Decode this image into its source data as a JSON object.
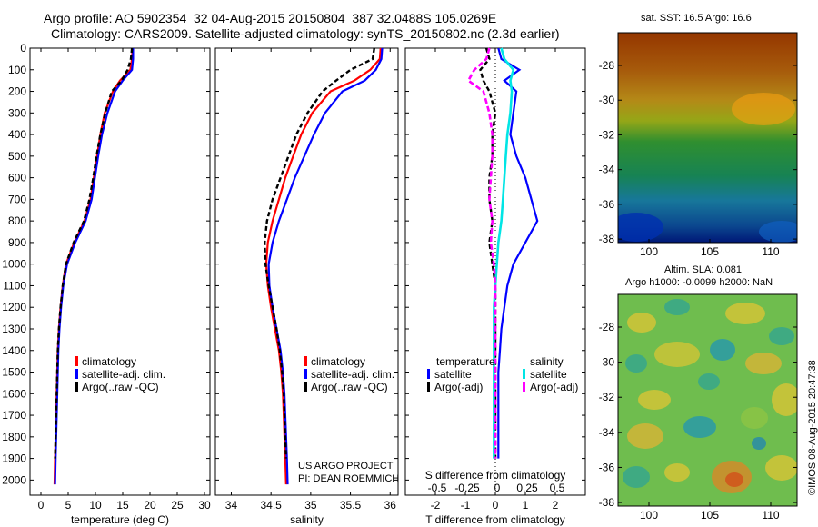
{
  "header": {
    "title_line1": "Argo profile: AO 5902354_32 04-Aug-2015 20150804_387 32.0488S 105.0269E",
    "title_line2": "Climatology: CARS2009. Satellite-adjusted climatology: synTS_20150802.nc (2.3d earlier)"
  },
  "maps": {
    "sst_title": "sat. SST: 16.5 Argo: 16.6",
    "sla_title1": "Altim. SLA: 0.081",
    "sla_title2": "Argo h1000: -0.0099 h2000: NaN",
    "xticks": [
      "100",
      "105",
      "110"
    ],
    "yticks": [
      "-28",
      "-30",
      "-32",
      "-34",
      "-36",
      "-38"
    ]
  },
  "side_label": "©IMOS 08-Aug-2015 20:47:38",
  "project": {
    "line1": "US ARGO PROJECT",
    "line2": "PI: DEAN ROEMMICH"
  },
  "depth_ticks": [
    "0",
    "100",
    "200",
    "300",
    "400",
    "500",
    "600",
    "700",
    "800",
    "900",
    "1000",
    "1100",
    "1200",
    "1300",
    "1400",
    "1500",
    "1600",
    "1700",
    "1800",
    "1900",
    "2000"
  ],
  "legend_profiles": [
    "climatology",
    "satellite-adj. clim.",
    "Argo(..raw -QC)"
  ],
  "legend_diff": {
    "temp_header": "temperature",
    "sal_header": "salinity",
    "satellite": "satellite",
    "argo": "Argo(-adj)"
  },
  "colors": {
    "climatology": "#ff0000",
    "satellite": "#0000ff",
    "argo": "#000000",
    "sal_satellite": "#00e5e5",
    "sal_argo": "#ff00ff"
  },
  "chart_data": [
    {
      "type": "line",
      "xlabel": "temperature (deg C)",
      "ylabel": "",
      "xlim": [
        -2,
        31
      ],
      "ylim": [
        2070,
        0
      ],
      "xticks": [
        "0",
        "5",
        "10",
        "15",
        "20",
        "25",
        "30"
      ],
      "series": [
        {
          "name": "climatology",
          "x": [
            16.8,
            16.7,
            16.4,
            14.5,
            13.2,
            11.7,
            10.9,
            10.3,
            9.7,
            9.1,
            8.0,
            6.1,
            4.6,
            4.0,
            3.6,
            3.3,
            3.1,
            3.0,
            2.9,
            2.8,
            2.7,
            2.6,
            2.5
          ],
          "y": [
            0,
            50,
            100,
            150,
            200,
            300,
            400,
            500,
            600,
            700,
            800,
            900,
            1000,
            1100,
            1200,
            1300,
            1400,
            1500,
            1600,
            1700,
            1800,
            1900,
            2020
          ]
        },
        {
          "name": "satellite-adj. clim.",
          "x": [
            16.9,
            16.9,
            16.7,
            15.0,
            13.6,
            12.2,
            11.2,
            10.5,
            9.9,
            9.3,
            8.2,
            6.3,
            4.8,
            4.1,
            3.7,
            3.4,
            3.2,
            3.1,
            3.0,
            2.9,
            2.8,
            2.7,
            2.6
          ],
          "y": [
            0,
            50,
            100,
            150,
            200,
            300,
            400,
            500,
            600,
            700,
            800,
            900,
            1000,
            1100,
            1200,
            1300,
            1400,
            1500,
            1600,
            1700,
            1800,
            1900,
            2020
          ]
        },
        {
          "name": "Argo(..raw -QC)",
          "x": [
            16.7,
            16.5,
            15.9,
            14.8,
            13.0,
            11.8,
            10.9,
            10.2,
            9.6,
            8.9,
            7.9,
            6.0,
            4.6,
            4.0,
            3.6,
            3.3,
            3.1,
            3.0,
            2.9,
            2.8,
            2.7,
            2.6
          ],
          "y": [
            0,
            50,
            100,
            150,
            200,
            300,
            400,
            500,
            600,
            700,
            800,
            900,
            1000,
            1100,
            1200,
            1300,
            1400,
            1500,
            1600,
            1700,
            1800,
            1900
          ]
        }
      ]
    },
    {
      "type": "line",
      "xlabel": "salinity",
      "ylabel": "",
      "xlim": [
        33.8,
        36.1
      ],
      "ylim": [
        2070,
        0
      ],
      "xticks": [
        "34",
        "34.5",
        "35",
        "35.5",
        "36"
      ],
      "series": [
        {
          "name": "climatology",
          "x": [
            35.88,
            35.87,
            35.75,
            35.55,
            35.25,
            35.02,
            34.88,
            34.78,
            34.68,
            34.6,
            34.52,
            34.46,
            34.44,
            34.46,
            34.5,
            34.55,
            34.6,
            34.63,
            34.65,
            34.66,
            34.67,
            34.68,
            34.69
          ],
          "y": [
            0,
            50,
            100,
            150,
            200,
            300,
            400,
            500,
            600,
            700,
            800,
            900,
            1000,
            1100,
            1200,
            1300,
            1400,
            1500,
            1600,
            1700,
            1800,
            1900,
            2020
          ]
        },
        {
          "name": "satellite-adj. clim.",
          "x": [
            35.9,
            35.89,
            35.82,
            35.68,
            35.4,
            35.18,
            35.04,
            34.92,
            34.8,
            34.7,
            34.6,
            34.52,
            34.47,
            34.48,
            34.52,
            34.57,
            34.62,
            34.65,
            34.67,
            34.68,
            34.69,
            34.7,
            34.71
          ],
          "y": [
            0,
            50,
            100,
            150,
            200,
            300,
            400,
            500,
            600,
            700,
            800,
            900,
            1000,
            1100,
            1200,
            1300,
            1400,
            1500,
            1600,
            1700,
            1800,
            1900,
            2020
          ]
        },
        {
          "name": "Argo(..raw -QC)",
          "x": [
            35.8,
            35.78,
            35.5,
            35.32,
            35.15,
            34.96,
            34.82,
            34.72,
            34.62,
            34.52,
            34.45,
            34.42,
            34.43,
            34.47,
            34.52,
            34.57,
            34.61,
            34.64,
            34.66,
            34.67,
            34.68,
            34.69
          ],
          "y": [
            0,
            50,
            100,
            150,
            200,
            300,
            400,
            500,
            600,
            700,
            800,
            900,
            1000,
            1100,
            1200,
            1300,
            1400,
            1500,
            1600,
            1700,
            1800,
            1900
          ]
        }
      ]
    },
    {
      "type": "line",
      "xlabel": "T difference from climatology",
      "xlabel_top": "S difference from climatology",
      "ylabel": "",
      "xlim": [
        -3,
        3
      ],
      "ylim": [
        2070,
        0
      ],
      "xticks": [
        "-2",
        "-1",
        "0",
        "1",
        "2"
      ],
      "xticks_top": [
        "-0.5",
        "-0.25",
        "0",
        "0.25",
        "0.5"
      ],
      "series": [
        {
          "name": "temperature satellite",
          "x": [
            0.1,
            0.2,
            0.8,
            0.3,
            0.7,
            0.6,
            0.5,
            0.7,
            1.0,
            1.2,
            1.4,
            1.0,
            0.6,
            0.4,
            0.3,
            0.2,
            0.15,
            0.1,
            0.1,
            0.1,
            0.1,
            0.1
          ],
          "y": [
            0,
            50,
            100,
            150,
            200,
            300,
            400,
            500,
            600,
            700,
            800,
            900,
            1000,
            1100,
            1200,
            1300,
            1400,
            1500,
            1600,
            1700,
            1800,
            1900
          ]
        },
        {
          "name": "temperature Argo(-adj)",
          "x": [
            -0.3,
            -0.2,
            -0.5,
            -0.4,
            -0.2,
            0.0,
            -0.1,
            -0.1,
            -0.2,
            -0.2,
            -0.1,
            -0.2,
            -0.1,
            0.0,
            0.0,
            0.0,
            0.0,
            0.0,
            0.0,
            0.0,
            0.0,
            0.0
          ],
          "y": [
            0,
            50,
            100,
            150,
            200,
            300,
            400,
            500,
            600,
            700,
            800,
            900,
            1000,
            1100,
            1200,
            1300,
            1400,
            1500,
            1600,
            1700,
            1800,
            1900
          ]
        },
        {
          "name": "salinity satellite",
          "x": [
            0.2,
            0.3,
            0.6,
            0.5,
            0.55,
            0.5,
            0.4,
            0.35,
            0.3,
            0.25,
            0.2,
            0.1,
            0.05,
            0.0,
            -0.05,
            -0.05,
            -0.05,
            -0.05,
            -0.05,
            -0.05,
            -0.05,
            -0.05
          ],
          "y": [
            0,
            50,
            100,
            150,
            200,
            300,
            400,
            500,
            600,
            700,
            800,
            900,
            1000,
            1100,
            1200,
            1300,
            1400,
            1500,
            1600,
            1700,
            1800,
            1900
          ]
        },
        {
          "name": "salinity Argo(-adj)",
          "x": [
            -0.2,
            -0.3,
            -0.7,
            -0.9,
            -0.4,
            -0.2,
            -0.1,
            -0.1,
            -0.15,
            -0.2,
            -0.1,
            -0.15,
            -0.05,
            0.0,
            0.0,
            0.0,
            0.0,
            0.0,
            0.0,
            0.0,
            0.0,
            0.0
          ],
          "y": [
            0,
            50,
            100,
            150,
            200,
            300,
            400,
            500,
            600,
            700,
            800,
            900,
            1000,
            1100,
            1200,
            1300,
            1400,
            1500,
            1600,
            1700,
            1800,
            1900
          ]
        }
      ]
    }
  ]
}
